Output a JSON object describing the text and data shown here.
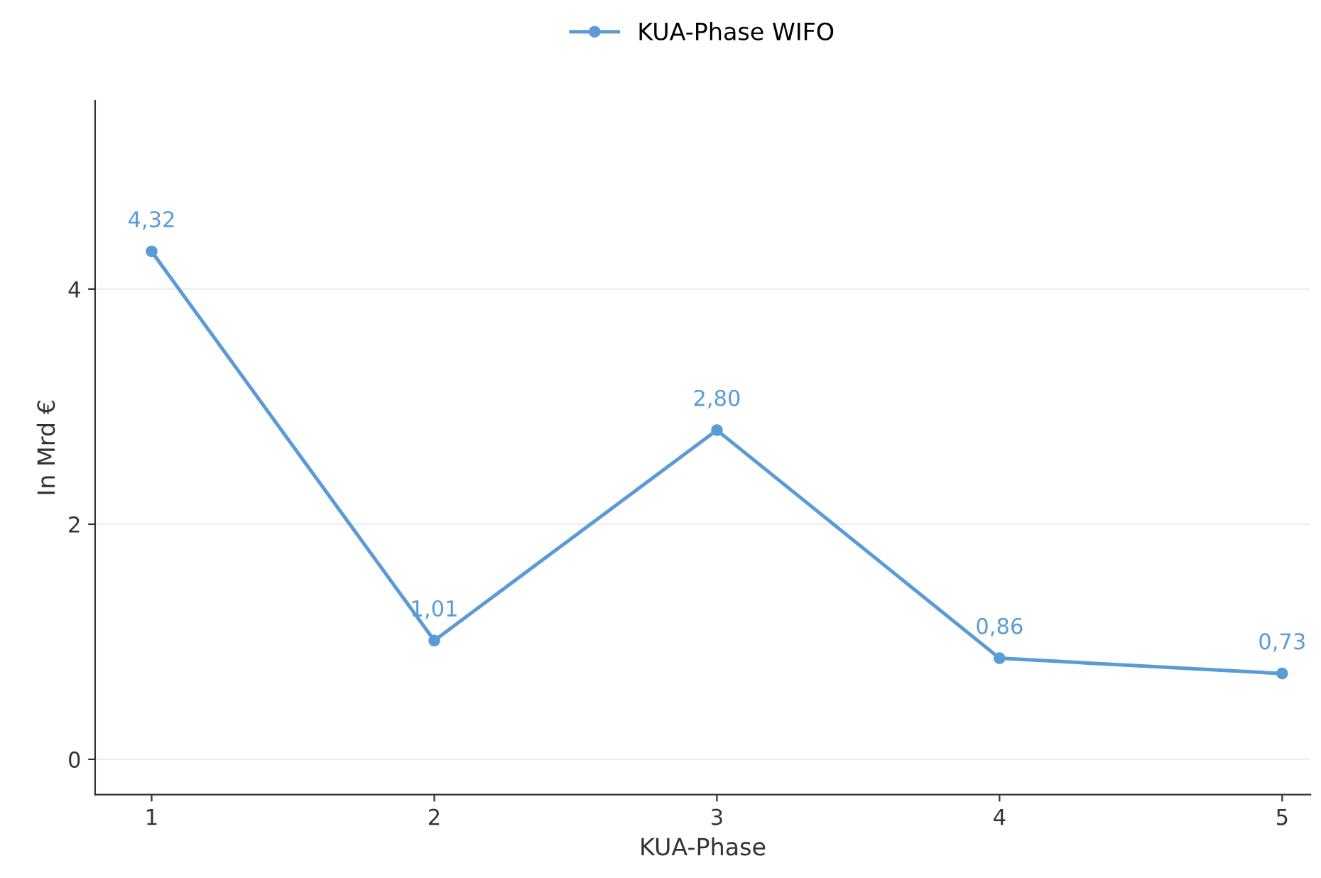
{
  "chart_data": {
    "type": "line",
    "xlabel": "KUA-Phase",
    "ylabel": "In Mrd €",
    "x": [
      1,
      2,
      3,
      4,
      5
    ],
    "series": [
      {
        "name": "KUA-Phase WIFO",
        "color": "#5b9bd5",
        "values": [
          4.32,
          1.01,
          2.8,
          0.86,
          0.73
        ],
        "value_labels": [
          "4,32",
          "1,01",
          "2,80",
          "0,86",
          "0,73"
        ]
      }
    ],
    "xlim": [
      0.8,
      5.1
    ],
    "ylim": [
      -0.3,
      5.6
    ],
    "xticks": [
      1,
      2,
      3,
      4,
      5
    ],
    "yticks": [
      0,
      2,
      4
    ],
    "grid": "y",
    "legend": "top",
    "marker": "circle",
    "line_style": "solid"
  }
}
